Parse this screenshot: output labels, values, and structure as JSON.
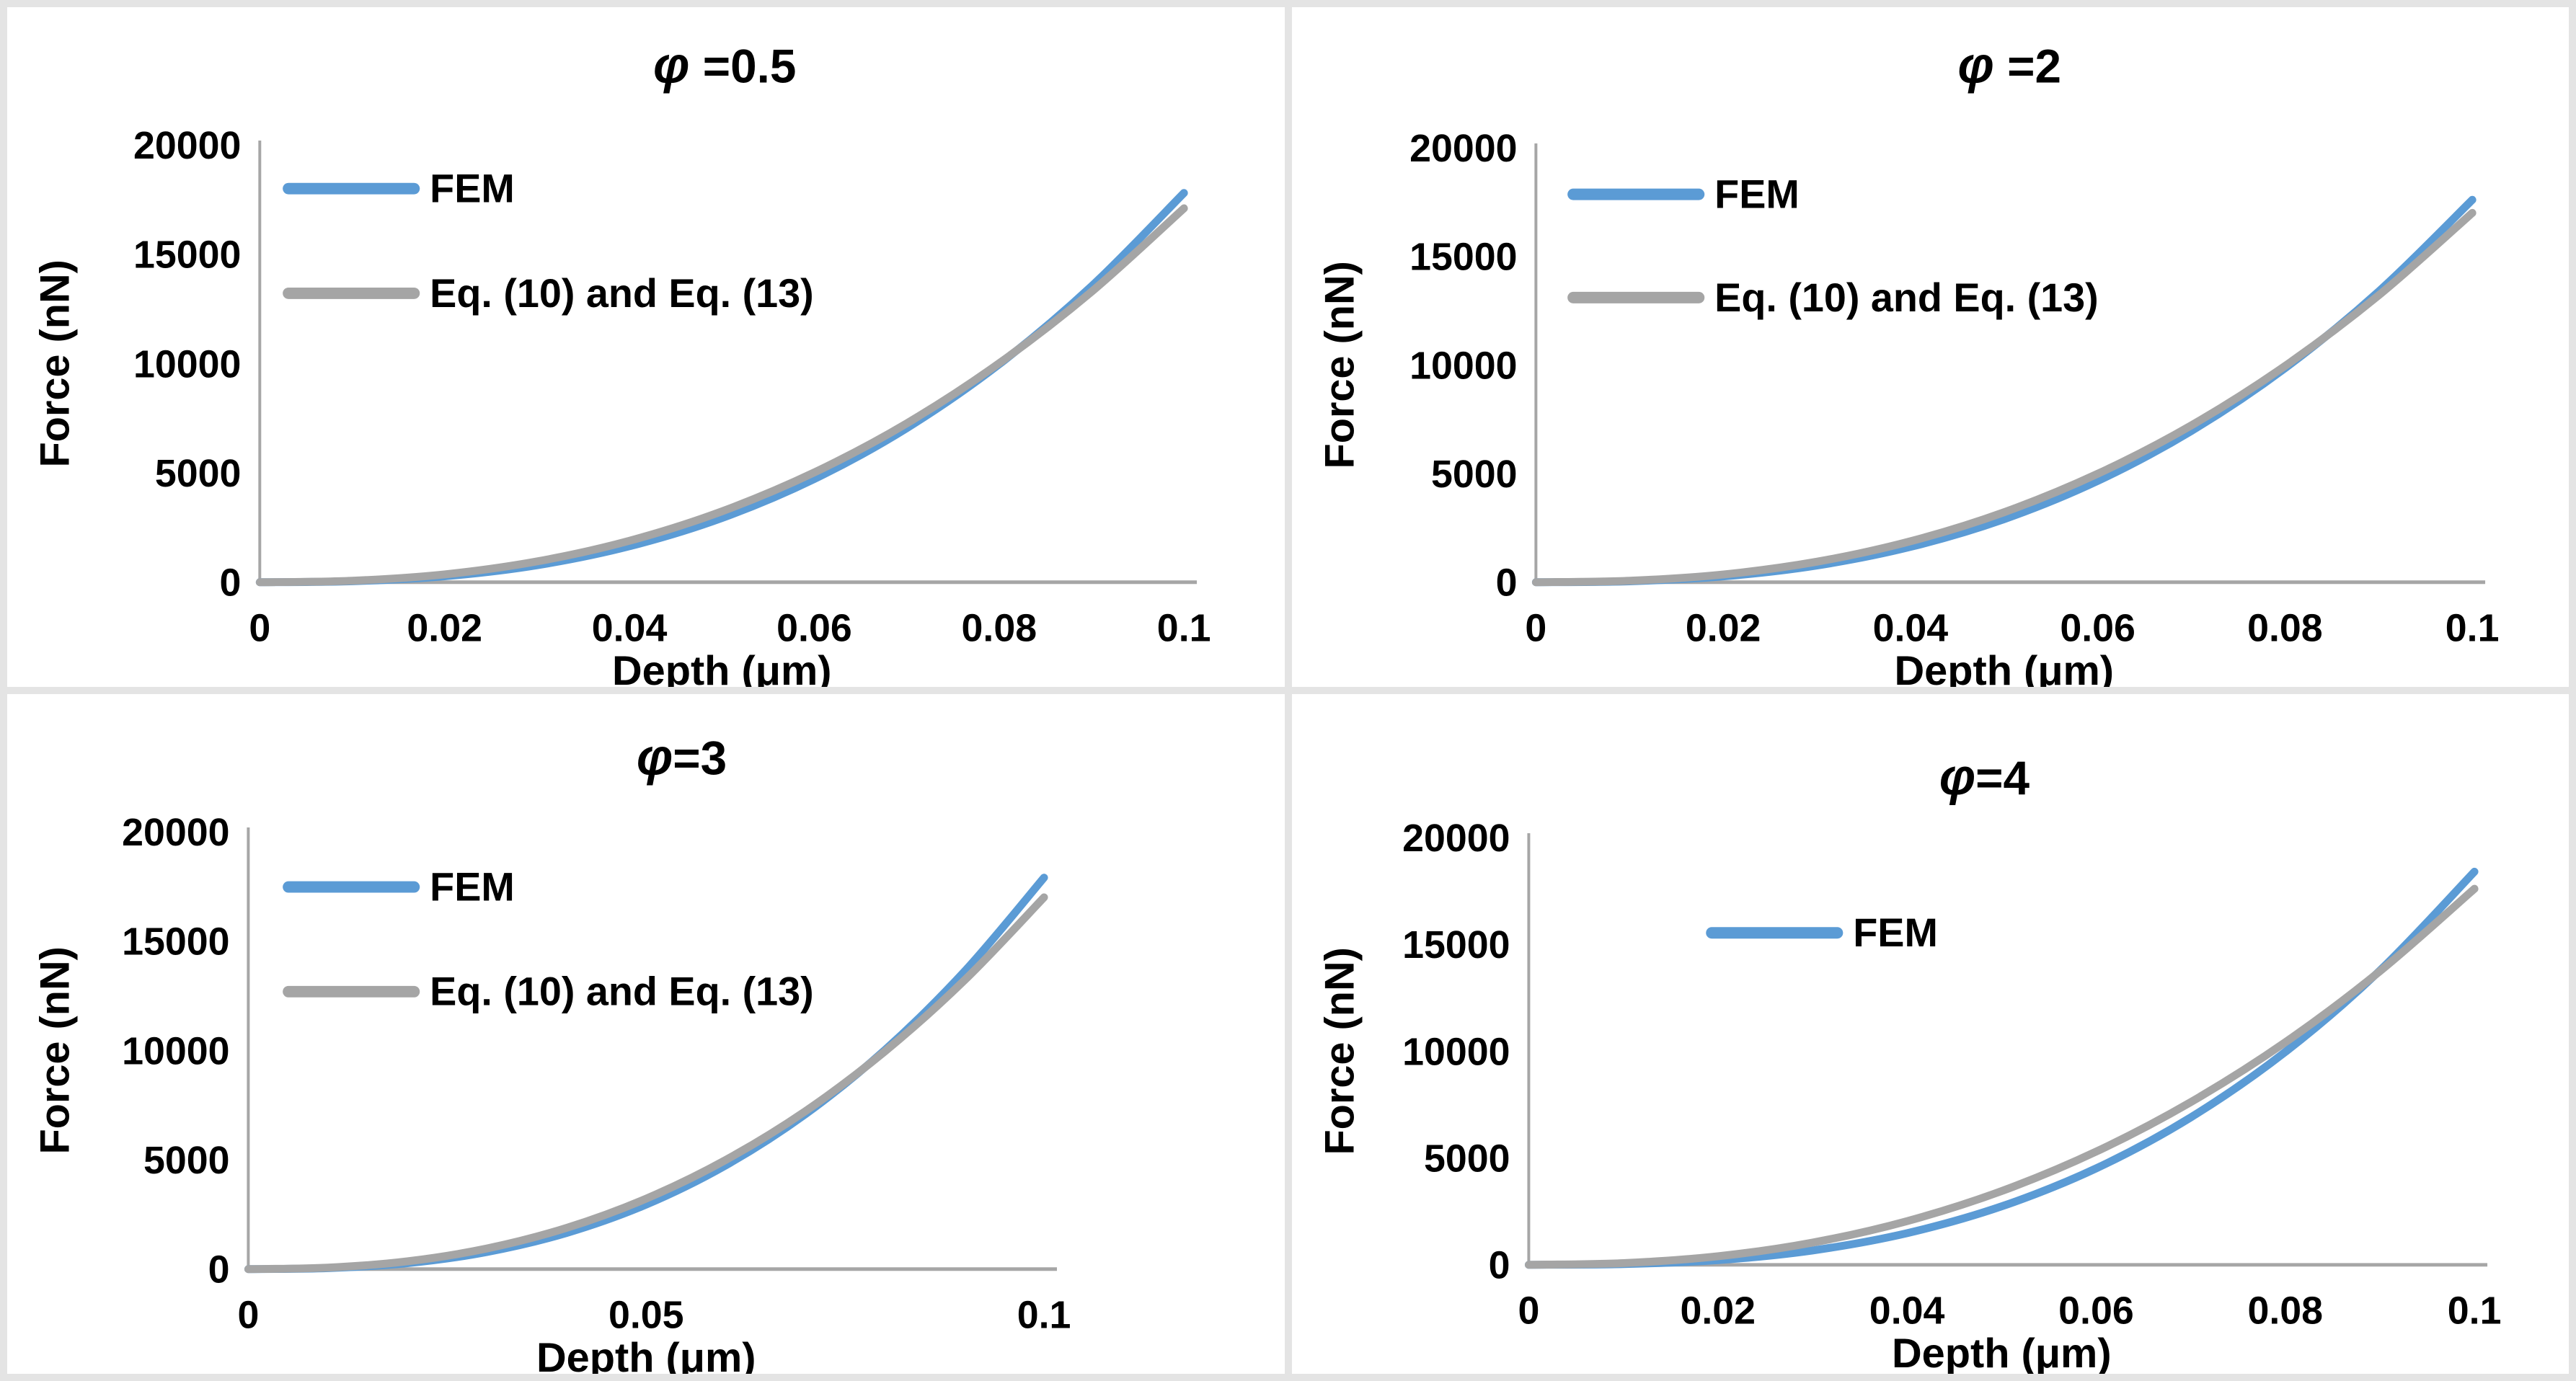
{
  "figure": {
    "background_color": "#ffffff",
    "frame_color": "#e4e4e4"
  },
  "colors": {
    "fem": "#5B9BD5",
    "eq": "#A5A5A5",
    "axis": "#A6A6A6",
    "text": "#000000"
  },
  "chart_data": [
    {
      "type": "line",
      "title": "φ =0.5",
      "title_phi": "φ",
      "title_rest": " =0.5",
      "xlabel": "Depth (μm)",
      "ylabel": "Force (nN)",
      "xlim": [
        0,
        0.1
      ],
      "ylim": [
        0,
        20000
      ],
      "grid": false,
      "legend_position": "upper-left",
      "xticks": [
        0,
        0.02,
        0.04,
        0.06,
        0.08,
        0.1
      ],
      "xtick_labels": [
        "0",
        "0.02",
        "0.04",
        "0.06",
        "0.08",
        "0.1"
      ],
      "yticks": [
        0,
        5000,
        10000,
        15000,
        20000
      ],
      "ytick_labels": [
        "0",
        "5000",
        "10000",
        "15000",
        "20000"
      ],
      "legend": [
        "FEM",
        "Eq. (10) and Eq. (13)"
      ],
      "x": [
        0,
        0.01,
        0.02,
        0.03,
        0.04,
        0.05,
        0.06,
        0.07,
        0.08,
        0.09,
        0.1
      ],
      "series": [
        {
          "name": "FEM",
          "color_key": "fem",
          "values": [
            0,
            45,
            271,
            778,
            1645,
            2935,
            4717,
            7043,
            9964,
            13535,
            17800
          ]
        },
        {
          "name": "Eq. (10) and Eq. (13)",
          "color_key": "eq",
          "values": [
            0,
            68,
            359,
            951,
            1896,
            3240,
            5021,
            7262,
            10014,
            13283,
            17100
          ]
        }
      ]
    },
    {
      "type": "line",
      "title": "φ =2",
      "title_phi": "φ",
      "title_rest": " =2",
      "xlabel": "Depth (μm)",
      "ylabel": "Force (nN)",
      "xlim": [
        0,
        0.1
      ],
      "ylim": [
        0,
        20000
      ],
      "grid": false,
      "legend_position": "upper-left",
      "xticks": [
        0,
        0.02,
        0.04,
        0.06,
        0.08,
        0.1
      ],
      "xtick_labels": [
        "0",
        "0.02",
        "0.04",
        "0.06",
        "0.08",
        "0.1"
      ],
      "yticks": [
        0,
        5000,
        10000,
        15000,
        20000
      ],
      "ytick_labels": [
        "0",
        "5000",
        "10000",
        "15000",
        "20000"
      ],
      "legend": [
        "FEM",
        "Eq. (10) and Eq. (13)"
      ],
      "x": [
        0,
        0.01,
        0.02,
        0.03,
        0.04,
        0.05,
        0.06,
        0.07,
        0.08,
        0.09,
        0.1
      ],
      "series": [
        {
          "name": "FEM",
          "color_key": "fem",
          "values": [
            0,
            44,
            268,
            769,
            1626,
            2902,
            4664,
            6964,
            9852,
            13383,
            17600
          ]
        },
        {
          "name": "Eq. (10) and Eq. (13)",
          "color_key": "eq",
          "values": [
            0,
            68,
            357,
            945,
            1885,
            3222,
            4992,
            7220,
            9955,
            13205,
            17000
          ]
        }
      ]
    },
    {
      "type": "line",
      "title": "φ=3",
      "title_phi": "φ",
      "title_rest": "=3",
      "xlabel": "Depth (μm)",
      "ylabel": "Force (nN)",
      "xlim": [
        0,
        0.1
      ],
      "ylim": [
        0,
        20000
      ],
      "grid": false,
      "legend_position": "upper-left",
      "xticks": [
        0,
        0.05,
        0.1
      ],
      "xtick_labels": [
        "0",
        "0.05",
        "0.1"
      ],
      "yticks": [
        0,
        5000,
        10000,
        15000,
        20000
      ],
      "ytick_labels": [
        "0",
        "5000",
        "10000",
        "15000",
        "20000"
      ],
      "legend": [
        "FEM",
        "Eq. (10) and Eq. (13)"
      ],
      "x": [
        0,
        0.01,
        0.02,
        0.03,
        0.04,
        0.05,
        0.06,
        0.07,
        0.08,
        0.09,
        0.1
      ],
      "series": [
        {
          "name": "FEM",
          "color_key": "fem",
          "values": [
            0,
            45,
            272,
            782,
            1654,
            2951,
            4744,
            7082,
            10020,
            13611,
            17900
          ]
        },
        {
          "name": "Eq. (10) and Eq. (13)",
          "color_key": "eq",
          "values": [
            0,
            68,
            357,
            945,
            1885,
            3222,
            4992,
            7220,
            9955,
            13205,
            17000
          ]
        }
      ]
    },
    {
      "type": "line",
      "title": "φ=4",
      "title_phi": "φ",
      "title_rest": "=4",
      "xlabel": "Depth (μm)",
      "ylabel": "Force (nN)",
      "xlim": [
        0,
        0.1
      ],
      "ylim": [
        0,
        20000
      ],
      "grid": false,
      "legend_position": "upper-center",
      "xticks": [
        0,
        0.02,
        0.04,
        0.06,
        0.08,
        0.1
      ],
      "xtick_labels": [
        "0",
        "0.02",
        "0.04",
        "0.06",
        "0.08",
        "0.1"
      ],
      "yticks": [
        0,
        5000,
        10000,
        15000,
        20000
      ],
      "ytick_labels": [
        "0",
        "5000",
        "10000",
        "15000",
        "20000"
      ],
      "legend": [
        "FEM"
      ],
      "x": [
        0,
        0.01,
        0.02,
        0.03,
        0.04,
        0.05,
        0.06,
        0.07,
        0.08,
        0.09,
        0.1
      ],
      "series": [
        {
          "name": "FEM",
          "color_key": "fem",
          "values": [
            0,
            33,
            220,
            672,
            1481,
            2736,
            4515,
            6900,
            9962,
            13771,
            18400
          ]
        },
        {
          "color_key": "eq",
          "values": [
            0,
            79,
            401,
            1040,
            2043,
            3451,
            5299,
            7614,
            10416,
            13740,
            17600
          ]
        }
      ]
    }
  ]
}
